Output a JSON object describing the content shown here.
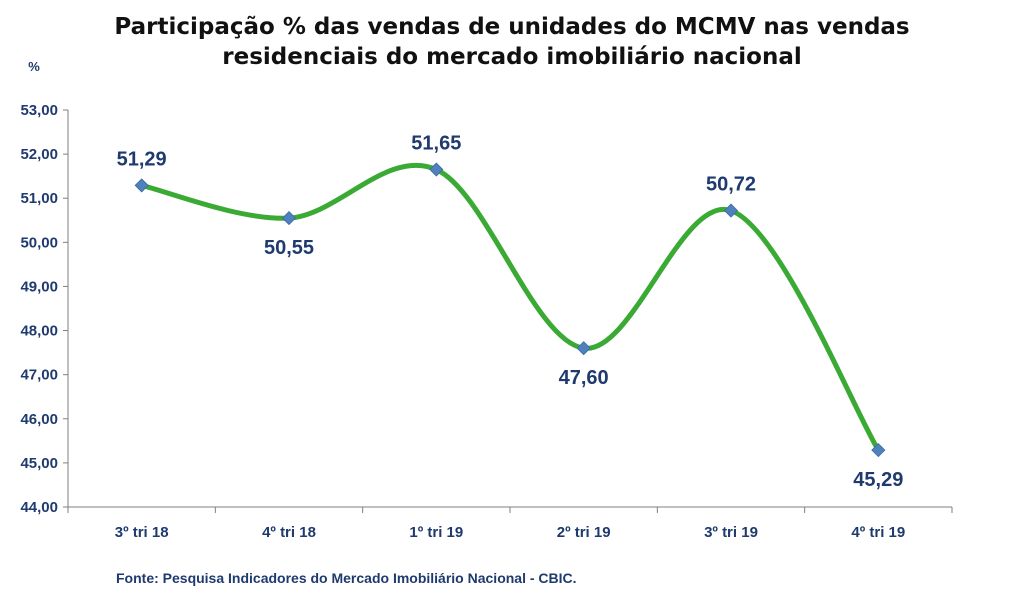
{
  "title_line1": "Participação % das vendas de unidades do MCMV nas vendas",
  "title_line2": "residenciais do mercado imobiliário nacional",
  "source": "Fonte:  Pesquisa Indicadores do Mercado Imobiliário Nacional - CBIC.",
  "colors": {
    "line": "#3aaa35",
    "marker": "#4f81bd",
    "axis_text": "#1f3a6e",
    "axis_line": "#7f7f7f"
  },
  "chart_data": {
    "type": "line",
    "ylabel": "%",
    "categories": [
      "3º tri 18",
      "4º tri 18",
      "1º tri 19",
      "2º tri 19",
      "3º tri 19",
      "4º tri 19"
    ],
    "values": [
      51.29,
      50.55,
      51.65,
      47.6,
      50.72,
      45.29
    ],
    "data_labels": [
      "51,29",
      "50,55",
      "51,65",
      "47,60",
      "50,72",
      "45,29"
    ],
    "ylim": [
      44,
      53
    ],
    "yticks": [
      "44,00",
      "45,00",
      "46,00",
      "47,00",
      "48,00",
      "49,00",
      "50,00",
      "51,00",
      "52,00",
      "53,00"
    ],
    "smooth": true,
    "grid": false,
    "legend": "none"
  }
}
